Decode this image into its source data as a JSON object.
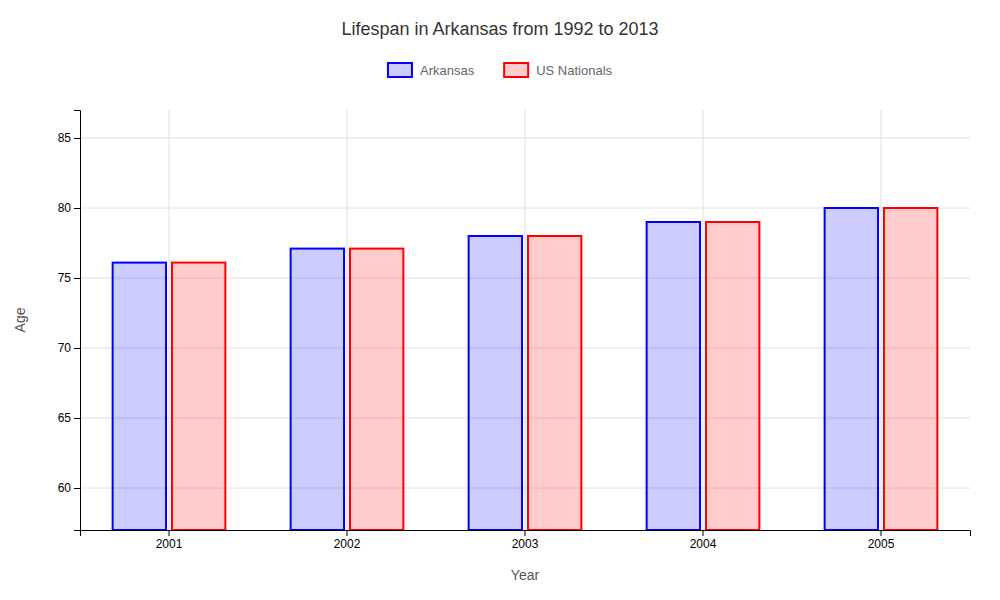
{
  "chart_data": {
    "type": "bar",
    "title": "Lifespan in Arkansas from 1992 to 2013",
    "x_label": "Year",
    "y_label": "Age",
    "categories": [
      "2001",
      "2002",
      "2003",
      "2004",
      "2005"
    ],
    "series": [
      {
        "name": "Arkansas",
        "color": "#0000ff",
        "values": [
          76.1,
          77.1,
          78.0,
          79.0,
          80.0
        ]
      },
      {
        "name": "US Nationals",
        "color": "#ff0000",
        "values": [
          76.1,
          77.1,
          78.0,
          79.0,
          80.0
        ]
      }
    ],
    "ylim": [
      57,
      87
    ],
    "yticks": [
      60,
      65,
      70,
      75,
      80,
      85
    ],
    "grid": true,
    "legend": "top"
  }
}
